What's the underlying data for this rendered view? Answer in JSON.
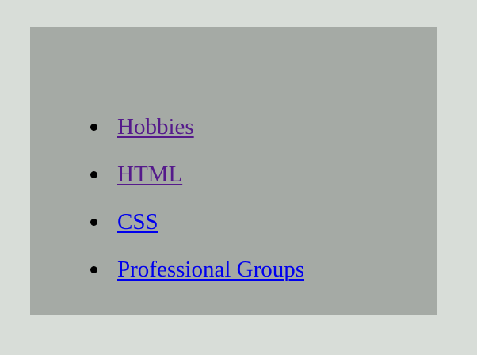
{
  "nav": {
    "items": [
      {
        "label": "Hobbies",
        "state": "visited",
        "color": "#551a8b"
      },
      {
        "label": "HTML",
        "state": "visited",
        "color": "#551a8b"
      },
      {
        "label": "CSS",
        "state": "unvisited",
        "color": "#0000ee"
      },
      {
        "label": "Professional Groups",
        "state": "unvisited",
        "color": "#0000ee"
      }
    ]
  },
  "colors": {
    "page_background": "#d8ddd8",
    "panel_background": "#a5aaa5",
    "bullet": "#000000"
  }
}
